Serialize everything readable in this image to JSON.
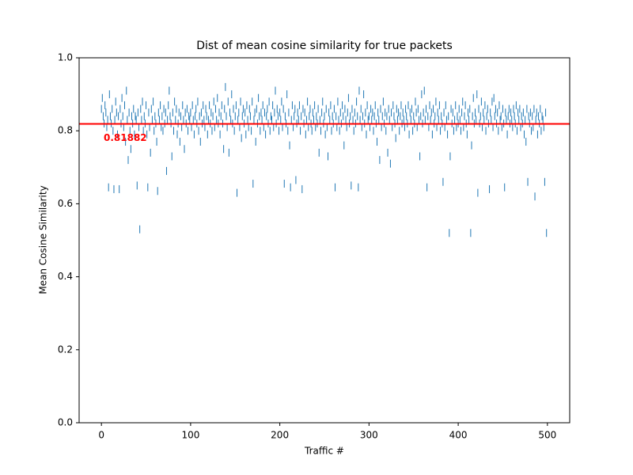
{
  "chart_data": {
    "type": "scatter",
    "title": "Dist of mean cosine similarity for true packets",
    "x_label": "Traffic #",
    "y_label": "Mean Cosine Similarity",
    "color": "#1f77b4",
    "marker": "|",
    "xlim": [
      -25,
      525
    ],
    "xticks": [
      0,
      100,
      200,
      300,
      400,
      500
    ],
    "ylim": [
      0,
      1
    ],
    "yticks": [
      {
        "value": 0,
        "label": "0.0"
      },
      {
        "value": 0.2,
        "label": "0.2"
      },
      {
        "value": 0.4,
        "label": "0.4"
      },
      {
        "value": 0.6,
        "label": "0.6"
      },
      {
        "value": 0.8,
        "label": "0.8"
      },
      {
        "value": 1,
        "label": "1.0"
      }
    ],
    "threshold": 0.81882,
    "threshold_color": "#ff0000",
    "x": [
      0,
      1,
      2,
      3,
      4,
      5,
      6,
      7,
      8,
      9,
      10,
      11,
      12,
      13,
      14,
      15,
      16,
      17,
      18,
      19,
      20,
      21,
      22,
      23,
      24,
      25,
      26,
      27,
      28,
      29,
      30,
      31,
      32,
      33,
      34,
      35,
      36,
      37,
      38,
      39,
      40,
      41,
      42,
      43,
      44,
      45,
      46,
      47,
      48,
      49,
      50,
      51,
      52,
      53,
      54,
      55,
      56,
      57,
      58,
      59,
      60,
      61,
      62,
      63,
      64,
      65,
      66,
      67,
      68,
      69,
      70,
      71,
      72,
      73,
      74,
      75,
      76,
      77,
      78,
      79,
      80,
      81,
      82,
      83,
      84,
      85,
      86,
      87,
      88,
      89,
      90,
      91,
      92,
      93,
      94,
      95,
      96,
      97,
      98,
      99,
      100,
      101,
      102,
      103,
      104,
      105,
      106,
      107,
      108,
      109,
      110,
      111,
      112,
      113,
      114,
      115,
      116,
      117,
      118,
      119,
      120,
      121,
      122,
      123,
      124,
      125,
      126,
      127,
      128,
      129,
      130,
      131,
      132,
      133,
      134,
      135,
      136,
      137,
      138,
      139,
      140,
      141,
      142,
      143,
      144,
      145,
      146,
      147,
      148,
      149,
      150,
      151,
      152,
      153,
      154,
      155,
      156,
      157,
      158,
      159,
      160,
      161,
      162,
      163,
      164,
      165,
      166,
      167,
      168,
      169,
      170,
      171,
      172,
      173,
      174,
      175,
      176,
      177,
      178,
      179,
      180,
      181,
      182,
      183,
      184,
      185,
      186,
      187,
      188,
      189,
      190,
      191,
      192,
      193,
      194,
      195,
      196,
      197,
      198,
      199,
      200,
      201,
      202,
      203,
      204,
      205,
      206,
      207,
      208,
      209,
      210,
      211,
      212,
      213,
      214,
      215,
      216,
      217,
      218,
      219,
      220,
      221,
      222,
      223,
      224,
      225,
      226,
      227,
      228,
      229,
      230,
      231,
      232,
      233,
      234,
      235,
      236,
      237,
      238,
      239,
      240,
      241,
      242,
      243,
      244,
      245,
      246,
      247,
      248,
      249,
      250,
      251,
      252,
      253,
      254,
      255,
      256,
      257,
      258,
      259,
      260,
      261,
      262,
      263,
      264,
      265,
      266,
      267,
      268,
      269,
      270,
      271,
      272,
      273,
      274,
      275,
      276,
      277,
      278,
      279,
      280,
      281,
      282,
      283,
      284,
      285,
      286,
      287,
      288,
      289,
      290,
      291,
      292,
      293,
      294,
      295,
      296,
      297,
      298,
      299,
      300,
      301,
      302,
      303,
      304,
      305,
      306,
      307,
      308,
      309,
      310,
      311,
      312,
      313,
      314,
      315,
      316,
      317,
      318,
      319,
      320,
      321,
      322,
      323,
      324,
      325,
      326,
      327,
      328,
      329,
      330,
      331,
      332,
      333,
      334,
      335,
      336,
      337,
      338,
      339,
      340,
      341,
      342,
      343,
      344,
      345,
      346,
      347,
      348,
      349,
      350,
      351,
      352,
      353,
      354,
      355,
      356,
      357,
      358,
      359,
      360,
      361,
      362,
      363,
      364,
      365,
      366,
      367,
      368,
      369,
      370,
      371,
      372,
      373,
      374,
      375,
      376,
      377,
      378,
      379,
      380,
      381,
      382,
      383,
      384,
      385,
      386,
      387,
      388,
      389,
      390,
      391,
      392,
      393,
      394,
      395,
      396,
      397,
      398,
      399,
      400,
      401,
      402,
      403,
      404,
      405,
      406,
      407,
      408,
      409,
      410,
      411,
      412,
      413,
      414,
      415,
      416,
      417,
      418,
      419,
      420,
      421,
      422,
      423,
      424,
      425,
      426,
      427,
      428,
      429,
      430,
      431,
      432,
      433,
      434,
      435,
      436,
      437,
      438,
      439,
      440,
      441,
      442,
      443,
      444,
      445,
      446,
      447,
      448,
      449,
      450,
      451,
      452,
      453,
      454,
      455,
      456,
      457,
      458,
      459,
      460,
      461,
      462,
      463,
      464,
      465,
      466,
      467,
      468,
      469,
      470,
      471,
      472,
      473,
      474,
      475,
      476,
      477,
      478,
      479,
      480,
      481,
      482,
      483,
      484,
      485,
      486,
      487,
      488,
      489,
      490,
      491,
      492,
      493,
      494,
      495,
      496,
      497,
      498,
      499
    ],
    "values": [
      0.86,
      0.89,
      0.84,
      0.82,
      0.87,
      0.85,
      0.81,
      0.83,
      0.645,
      0.9,
      0.84,
      0.82,
      0.86,
      0.8,
      0.64,
      0.83,
      0.88,
      0.85,
      0.79,
      0.84,
      0.64,
      0.86,
      0.82,
      0.89,
      0.84,
      0.81,
      0.87,
      0.77,
      0.91,
      0.83,
      0.72,
      0.85,
      0.8,
      0.75,
      0.84,
      0.82,
      0.86,
      0.79,
      0.84,
      0.83,
      0.65,
      0.85,
      0.81,
      0.53,
      0.86,
      0.83,
      0.88,
      0.8,
      0.84,
      0.82,
      0.87,
      0.79,
      0.645,
      0.85,
      0.81,
      0.74,
      0.86,
      0.83,
      0.88,
      0.8,
      0.84,
      0.82,
      0.77,
      0.635,
      0.85,
      0.83,
      0.87,
      0.81,
      0.84,
      0.8,
      0.86,
      0.82,
      0.85,
      0.69,
      0.83,
      0.87,
      0.91,
      0.84,
      0.82,
      0.73,
      0.85,
      0.8,
      0.88,
      0.83,
      0.86,
      0.79,
      0.82,
      0.85,
      0.77,
      0.84,
      0.81,
      0.87,
      0.83,
      0.75,
      0.85,
      0.82,
      0.86,
      0.8,
      0.84,
      0.83,
      0.85,
      0.81,
      0.87,
      0.83,
      0.79,
      0.84,
      0.86,
      0.82,
      0.88,
      0.8,
      0.84,
      0.77,
      0.85,
      0.82,
      0.87,
      0.83,
      0.81,
      0.86,
      0.84,
      0.79,
      0.83,
      0.87,
      0.82,
      0.85,
      0.8,
      0.84,
      0.88,
      0.81,
      0.86,
      0.83,
      0.89,
      0.82,
      0.85,
      0.79,
      0.84,
      0.87,
      0.82,
      0.75,
      0.86,
      0.92,
      0.84,
      0.81,
      0.88,
      0.74,
      0.85,
      0.83,
      0.9,
      0.82,
      0.86,
      0.8,
      0.84,
      0.87,
      0.63,
      0.83,
      0.85,
      0.81,
      0.88,
      0.78,
      0.84,
      0.86,
      0.82,
      0.85,
      0.79,
      0.87,
      0.83,
      0.81,
      0.86,
      0.84,
      0.8,
      0.88,
      0.655,
      0.83,
      0.85,
      0.77,
      0.86,
      0.82,
      0.89,
      0.84,
      0.8,
      0.85,
      0.83,
      0.87,
      0.81,
      0.85,
      0.79,
      0.84,
      0.86,
      0.82,
      0.88,
      0.8,
      0.84,
      0.83,
      0.87,
      0.81,
      0.85,
      0.91,
      0.82,
      0.86,
      0.84,
      0.8,
      0.85,
      0.83,
      0.88,
      0.81,
      0.86,
      0.655,
      0.84,
      0.82,
      0.9,
      0.8,
      0.85,
      0.76,
      0.645,
      0.83,
      0.87,
      0.81,
      0.84,
      0.86,
      0.665,
      0.82,
      0.85,
      0.83,
      0.87,
      0.8,
      0.84,
      0.64,
      0.86,
      0.82,
      0.85,
      0.79,
      0.83,
      0.88,
      0.81,
      0.84,
      0.86,
      0.82,
      0.8,
      0.85,
      0.83,
      0.87,
      0.81,
      0.84,
      0.82,
      0.86,
      0.74,
      0.83,
      0.8,
      0.85,
      0.88,
      0.82,
      0.84,
      0.79,
      0.86,
      0.81,
      0.73,
      0.85,
      0.83,
      0.87,
      0.8,
      0.84,
      0.82,
      0.86,
      0.645,
      0.84,
      0.81,
      0.88,
      0.83,
      0.8,
      0.85,
      0.82,
      0.87,
      0.84,
      0.76,
      0.86,
      0.83,
      0.81,
      0.85,
      0.89,
      0.82,
      0.84,
      0.65,
      0.86,
      0.83,
      0.8,
      0.85,
      0.82,
      0.88,
      0.84,
      0.645,
      0.91,
      0.83,
      0.86,
      0.81,
      0.84,
      0.9,
      0.82,
      0.85,
      0.79,
      0.87,
      0.83,
      0.84,
      0.81,
      0.86,
      0.83,
      0.85,
      0.8,
      0.84,
      0.87,
      0.82,
      0.77,
      0.85,
      0.83,
      0.72,
      0.86,
      0.81,
      0.84,
      0.88,
      0.82,
      0.85,
      0.8,
      0.84,
      0.74,
      0.86,
      0.83,
      0.71,
      0.85,
      0.81,
      0.87,
      0.84,
      0.82,
      0.78,
      0.86,
      0.83,
      0.85,
      0.8,
      0.84,
      0.87,
      0.82,
      0.85,
      0.83,
      0.81,
      0.86,
      0.84,
      0.82,
      0.87,
      0.79,
      0.85,
      0.83,
      0.86,
      0.8,
      0.84,
      0.82,
      0.88,
      0.85,
      0.81,
      0.86,
      0.83,
      0.73,
      0.84,
      0.9,
      0.82,
      0.85,
      0.91,
      0.83,
      0.86,
      0.645,
      0.84,
      0.81,
      0.87,
      0.83,
      0.85,
      0.79,
      0.86,
      0.82,
      0.84,
      0.88,
      0.81,
      0.85,
      0.83,
      0.87,
      0.8,
      0.84,
      0.82,
      0.66,
      0.85,
      0.81,
      0.87,
      0.83,
      0.79,
      0.84,
      0.52,
      0.73,
      0.86,
      0.82,
      0.85,
      0.8,
      0.83,
      0.87,
      0.81,
      0.84,
      0.82,
      0.86,
      0.83,
      0.8,
      0.85,
      0.88,
      0.81,
      0.84,
      0.87,
      0.82,
      0.79,
      0.85,
      0.83,
      0.86,
      0.52,
      0.76,
      0.84,
      0.89,
      0.82,
      0.85,
      0.83,
      0.9,
      0.63,
      0.86,
      0.82,
      0.84,
      0.88,
      0.81,
      0.85,
      0.83,
      0.87,
      0.8,
      0.84,
      0.86,
      0.82,
      0.64,
      0.85,
      0.83,
      0.88,
      0.81,
      0.89,
      0.84,
      0.86,
      0.82,
      0.85,
      0.8,
      0.87,
      0.83,
      0.84,
      0.81,
      0.86,
      0.82,
      0.645,
      0.85,
      0.83,
      0.79,
      0.84,
      0.86,
      0.82,
      0.85,
      0.83,
      0.81,
      0.86,
      0.84,
      0.82,
      0.87,
      0.8,
      0.85,
      0.83,
      0.86,
      0.81,
      0.84,
      0.82,
      0.85,
      0.79,
      0.83,
      0.77,
      0.86,
      0.66,
      0.84,
      0.82,
      0.85,
      0.8,
      0.84,
      0.81,
      0.86,
      0.62,
      0.83,
      0.85,
      0.79,
      0.84,
      0.82,
      0.86,
      0.8,
      0.84,
      0.83,
      0.81,
      0.66,
      0.85,
      0.52
    ]
  }
}
